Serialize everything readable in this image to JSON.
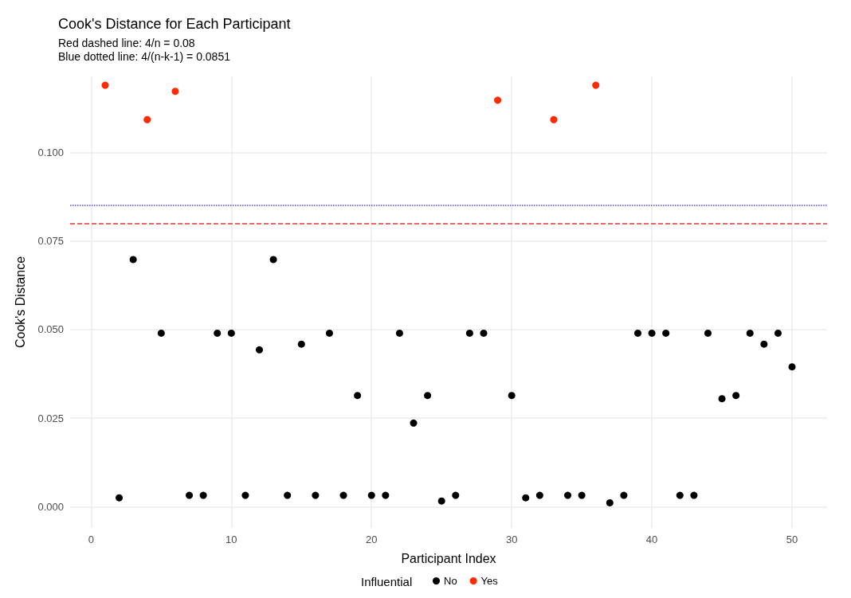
{
  "chart_data": {
    "type": "scatter",
    "title": "Cook's Distance for Each Participant",
    "subtitle": "Red dashed line: 4/n = 0.08\nBlue dotted line: 4/(n-k-1) = 0.0851",
    "xlabel": "Participant Index",
    "ylabel": "Cook's Distance",
    "legend_title": "Influential",
    "legend": "bottom",
    "grid": true,
    "marker": "circle",
    "xlim": [
      -1.5,
      52.5
    ],
    "xticks": [
      0,
      10,
      20,
      30,
      40,
      50
    ],
    "ylim": [
      -0.006,
      0.1215
    ],
    "yticks": [
      {
        "value": 0,
        "label": "0.000"
      },
      {
        "value": 0.025,
        "label": "0.025"
      },
      {
        "value": 0.05,
        "label": "0.050"
      },
      {
        "value": 0.075,
        "label": "0.075"
      },
      {
        "value": 0.1,
        "label": "0.100"
      }
    ],
    "series": [
      {
        "name": "No",
        "color": "#000000",
        "x": [
          2,
          3,
          5,
          7,
          8,
          9,
          10,
          11,
          12,
          13,
          14,
          15,
          16,
          17,
          18,
          19,
          20,
          21,
          22,
          23,
          24,
          25,
          26,
          27,
          28,
          30,
          31,
          32,
          34,
          35,
          37,
          38,
          39,
          40,
          41,
          42,
          43,
          44,
          45,
          46,
          47,
          48,
          49,
          50
        ],
        "values": [
          0.0025,
          0.0698,
          0.049,
          0.0032,
          0.0032,
          0.049,
          0.049,
          0.0032,
          0.0443,
          0.0698,
          0.0032,
          0.0459,
          0.0032,
          0.049,
          0.0032,
          0.0314,
          0.0032,
          0.0032,
          0.049,
          0.0236,
          0.0314,
          0.0016,
          0.0032,
          0.049,
          0.049,
          0.0314,
          0.0025,
          0.0032,
          0.0032,
          0.0032,
          0.0011,
          0.0032,
          0.049,
          0.049,
          0.049,
          0.0032,
          0.0032,
          0.049,
          0.0305,
          0.0314,
          0.049,
          0.0459,
          0.049,
          0.0395
        ]
      },
      {
        "name": "Yes",
        "color": "#ff2a00",
        "x": [
          1,
          4,
          6,
          29,
          33,
          36
        ],
        "values": [
          0.119,
          0.1093,
          0.1173,
          0.1148,
          0.1093,
          0.119
        ]
      }
    ],
    "ref_lines": [
      {
        "axis": "y",
        "value": 0.08,
        "color": "#e8332a",
        "line_style": "dashed"
      },
      {
        "axis": "y",
        "value": 0.0851,
        "color": "#4b4bff",
        "line_style": "dotted"
      }
    ]
  }
}
